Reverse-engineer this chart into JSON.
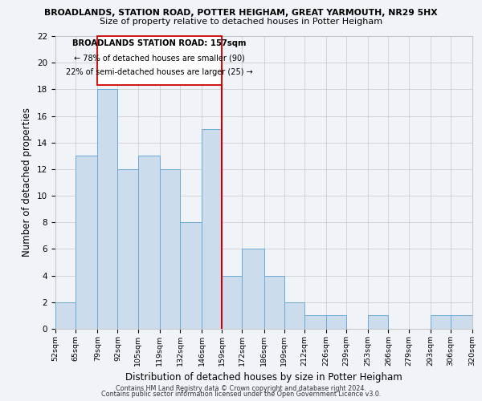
{
  "title": "BROADLANDS, STATION ROAD, POTTER HEIGHAM, GREAT YARMOUTH, NR29 5HX",
  "subtitle": "Size of property relative to detached houses in Potter Heigham",
  "xlabel": "Distribution of detached houses by size in Potter Heigham",
  "ylabel": "Number of detached properties",
  "bar_color": "#ccdcec",
  "bar_edge_color": "#6aaad4",
  "bins": [
    52,
    65,
    79,
    92,
    105,
    119,
    132,
    146,
    159,
    172,
    186,
    199,
    212,
    226,
    239,
    253,
    266,
    279,
    293,
    306,
    320
  ],
  "bin_labels": [
    "52sqm",
    "65sqm",
    "79sqm",
    "92sqm",
    "105sqm",
    "119sqm",
    "132sqm",
    "146sqm",
    "159sqm",
    "172sqm",
    "186sqm",
    "199sqm",
    "212sqm",
    "226sqm",
    "239sqm",
    "253sqm",
    "266sqm",
    "279sqm",
    "293sqm",
    "306sqm",
    "320sqm"
  ],
  "values": [
    2,
    13,
    18,
    12,
    13,
    12,
    8,
    15,
    4,
    6,
    4,
    2,
    1,
    1,
    0,
    1,
    0,
    0,
    1,
    1
  ],
  "marker_bin_index": 8,
  "marker_color": "#cc0000",
  "ylim": [
    0,
    22
  ],
  "yticks": [
    0,
    2,
    4,
    6,
    8,
    10,
    12,
    14,
    16,
    18,
    20,
    22
  ],
  "annotation_title": "BROADLANDS STATION ROAD: 157sqm",
  "annotation_line1": "← 78% of detached houses are smaller (90)",
  "annotation_line2": "22% of semi-detached houses are larger (25) →",
  "footer1": "Contains HM Land Registry data © Crown copyright and database right 2024.",
  "footer2": "Contains public sector information licensed under the Open Government Licence v3.0.",
  "background_color": "#f0f4f8",
  "grid_color": "#c8c8c8"
}
